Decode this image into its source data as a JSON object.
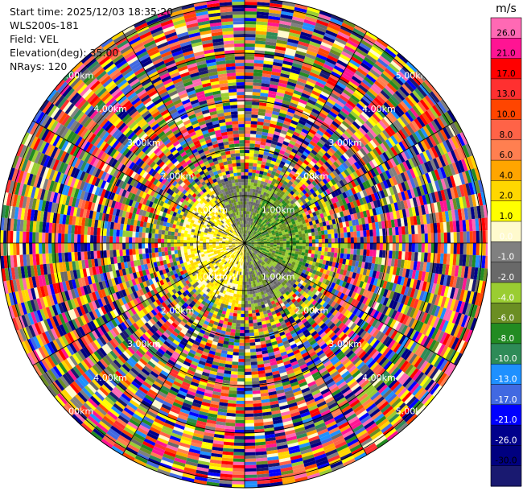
{
  "header": {
    "start_time": "Start time: 2025/12/03 18:35:20",
    "instrument": "WLS200s-181",
    "field": "Field: VEL",
    "elevation": "Elevation(deg): 35.00",
    "nrays": "NRays: 120"
  },
  "chart_data": {
    "type": "heatmap",
    "projection": "polar-ppi",
    "field": "VEL",
    "nrays": 120,
    "range_ring_labels": [
      "1.00km",
      "2.00km",
      "3.00km",
      "4.00km",
      "5.00km"
    ],
    "colorbar": {
      "unit": "m/s",
      "tick_labels": [
        "26.0",
        "21.0",
        "17.0",
        "13.0",
        "10.0",
        "8.0",
        "6.0",
        "4.0",
        "2.0",
        "1.0",
        "0.0",
        "-1.0",
        "-2.0",
        "-4.0",
        "-6.0",
        "-8.0",
        "-10.0",
        "-13.0",
        "-17.0",
        "-21.0",
        "-26.0",
        "-30.0"
      ],
      "colors": [
        "#ff69b4",
        "#ff1493",
        "#ff0000",
        "#ff3030",
        "#ff4500",
        "#ff6347",
        "#ff7f50",
        "#ffa500",
        "#ffd700",
        "#ffff00",
        "#fffacd",
        "#808080",
        "#696969",
        "#9acd32",
        "#6b8e23",
        "#228b22",
        "#2e8b57",
        "#1e90ff",
        "#4169e1",
        "#0000ff",
        "#00008b",
        "#000080",
        "#191970"
      ]
    }
  }
}
